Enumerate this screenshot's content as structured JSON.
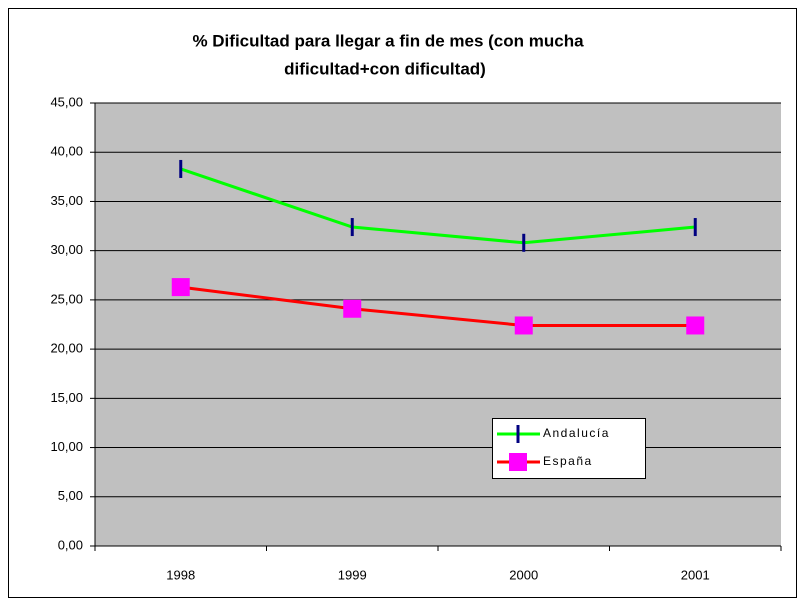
{
  "chart_data": {
    "type": "line",
    "title": [
      "% Dificultad para llegar a fin de mes (con mucha",
      "dificultad+con dificultad)"
    ],
    "categories": [
      "1998",
      "1999",
      "2000",
      "2001"
    ],
    "series": [
      {
        "name": "Andalucía",
        "color": "#00ff00",
        "marker_color": "#000080",
        "values": [
          38.3,
          32.4,
          30.8,
          32.4
        ]
      },
      {
        "name": "España",
        "color": "#ff0000",
        "marker_color": "#ff00ff",
        "values": [
          26.3,
          24.1,
          22.4,
          22.4
        ]
      }
    ],
    "ylim": [
      0,
      45
    ],
    "yticks": [
      {
        "value": 0,
        "label": "0,00"
      },
      {
        "value": 5,
        "label": "5,00"
      },
      {
        "value": 10,
        "label": "10,00"
      },
      {
        "value": 15,
        "label": "15,00"
      },
      {
        "value": 20,
        "label": "20,00"
      },
      {
        "value": 25,
        "label": "25,00"
      },
      {
        "value": 30,
        "label": "30,00"
      },
      {
        "value": 35,
        "label": "35,00"
      },
      {
        "value": 40,
        "label": "40,00"
      },
      {
        "value": 45,
        "label": "45,00"
      }
    ],
    "grid": true
  }
}
